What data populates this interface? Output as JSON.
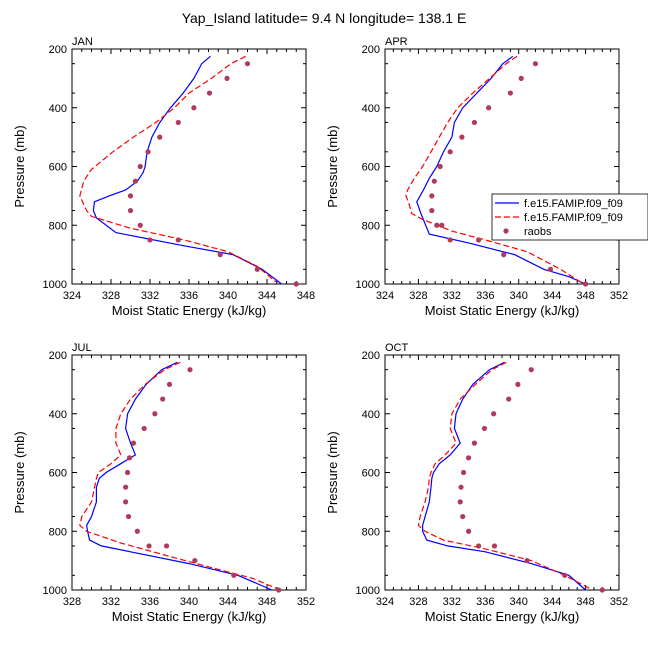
{
  "figure_title": "Yap_Island  latitude= 9.4 N longitude= 138.1 E",
  "legend": {
    "entries": [
      {
        "label": "f.e15.FAMIP.f09_f09",
        "style": "solid",
        "color": "#0000ff"
      },
      {
        "label": "f.e15.FAMIP.f09_f09",
        "style": "dashed",
        "color": "#ff0000"
      },
      {
        "label": "raobs",
        "style": "dots",
        "color": "#b03a5a"
      }
    ]
  },
  "chart_data": [
    {
      "type": "line",
      "title": "JAN",
      "xlabel": "Moist Static Energy (kJ/kg)",
      "ylabel": "Pressure (mb)",
      "xlim": [
        324,
        348
      ],
      "xticks": [
        "324",
        "328",
        "332",
        "336",
        "340",
        "344",
        "348"
      ],
      "ylim": [
        200,
        1000
      ],
      "yticks": [
        "200",
        "400",
        "600",
        "800",
        "1000"
      ],
      "y_inverted": true,
      "series": [
        {
          "name": "f.e15.FAMIP.f09_f09",
          "style": "solid",
          "color": "#0000ff",
          "x": [
            338.2,
            337.3,
            336.5,
            335.4,
            334.1,
            333.0,
            332.2,
            331.7,
            331.5,
            331.3,
            330.7,
            329.5,
            327.8,
            326.3,
            326.2,
            326.5,
            328.5,
            335.5,
            340.5,
            343.5,
            345.5
          ],
          "y": [
            225,
            250,
            300,
            350,
            400,
            450,
            500,
            550,
            600,
            620,
            650,
            680,
            700,
            720,
            750,
            775,
            825,
            870,
            900,
            950,
            1000
          ]
        },
        {
          "name": "f.e15.FAMIP.f09_f09",
          "style": "dashed",
          "color": "#ff0000",
          "x": [
            341.8,
            340.3,
            338.3,
            336.0,
            334.5,
            332.6,
            330.3,
            328.2,
            326.0,
            325.2,
            324.8,
            325.5,
            326.0,
            326.5,
            330.0,
            335.5,
            340.0,
            343.0,
            345.0
          ],
          "y": [
            225,
            250,
            300,
            350,
            400,
            450,
            500,
            550,
            610,
            650,
            700,
            750,
            770,
            775,
            810,
            850,
            890,
            940,
            995
          ]
        },
        {
          "name": "raobs",
          "style": "dots",
          "color": "#b03a5a",
          "x": [
            342.0,
            339.9,
            338.1,
            336.5,
            334.9,
            333.0,
            331.8,
            331.0,
            330.5,
            330.0,
            330.0,
            331.0,
            332.0,
            334.9,
            339.2,
            343.0,
            347.0
          ],
          "y": [
            250,
            300,
            350,
            400,
            450,
            500,
            550,
            600,
            650,
            700,
            750,
            800,
            850,
            850,
            900,
            950,
            1000
          ]
        }
      ]
    },
    {
      "type": "line",
      "title": "APR",
      "xlabel": "Moist Static Energy (kJ/kg)",
      "ylabel": "Pressure (mb)",
      "xlim": [
        324,
        352
      ],
      "xticks": [
        "324",
        "328",
        "332",
        "336",
        "340",
        "344",
        "348",
        "352"
      ],
      "ylim": [
        200,
        1000
      ],
      "yticks": [
        "200",
        "400",
        "600",
        "800",
        "1000"
      ],
      "y_inverted": true,
      "series": [
        {
          "name": "f.e15.FAMIP.f09_f09",
          "style": "solid",
          "color": "#0000ff",
          "x": [
            339.3,
            338.1,
            336.7,
            335.0,
            333.3,
            332.3,
            332.0,
            331.0,
            330.2,
            329.3,
            328.6,
            328.2,
            327.8,
            328.3,
            329.3,
            334.0,
            339.5,
            343.0,
            346.0,
            348.0
          ],
          "y": [
            225,
            250,
            300,
            350,
            400,
            450,
            500,
            550,
            600,
            640,
            680,
            700,
            720,
            760,
            830,
            860,
            900,
            950,
            975,
            1000
          ]
        },
        {
          "name": "f.e15.FAMIP.f09_f09",
          "style": "dashed",
          "color": "#ff0000",
          "x": [
            339.8,
            338.5,
            336.5,
            334.5,
            332.7,
            331.5,
            330.5,
            329.5,
            328.5,
            327.5,
            326.7,
            326.5,
            326.8,
            327.2,
            328.5,
            332.0,
            336.0,
            341.0,
            345.0,
            347.5
          ],
          "y": [
            225,
            250,
            300,
            350,
            400,
            450,
            500,
            550,
            600,
            640,
            680,
            700,
            720,
            760,
            780,
            820,
            850,
            890,
            950,
            995
          ]
        },
        {
          "name": "raobs",
          "style": "dots",
          "color": "#b03a5a",
          "x": [
            342.0,
            340.3,
            339.0,
            336.4,
            334.7,
            333.2,
            331.8,
            330.6,
            329.9,
            329.6,
            329.6,
            330.2,
            330.8,
            331.8,
            335.2,
            338.2,
            343.8,
            348.0
          ],
          "y": [
            250,
            300,
            350,
            400,
            450,
            500,
            550,
            600,
            650,
            700,
            750,
            800,
            800,
            850,
            850,
            900,
            950,
            1000
          ]
        }
      ]
    },
    {
      "type": "line",
      "title": "JUL",
      "xlabel": "Moist Static Energy (kJ/kg)",
      "ylabel": "Pressure (mb)",
      "xlim": [
        328,
        352
      ],
      "xticks": [
        "328",
        "332",
        "336",
        "340",
        "344",
        "348",
        "352"
      ],
      "ylim": [
        200,
        1000
      ],
      "yticks": [
        "200",
        "400",
        "600",
        "800",
        "1000"
      ],
      "y_inverted": true,
      "series": [
        {
          "name": "f.e15.FAMIP.f09_f09",
          "style": "solid",
          "color": "#0000ff",
          "x": [
            338.8,
            337.2,
            335.6,
            334.5,
            333.7,
            333.5,
            334.0,
            334.5,
            333.0,
            331.5,
            330.8,
            330.5,
            330.5,
            330.0,
            329.5,
            329.6,
            329.8,
            331.0,
            334.0,
            340.0,
            345.0,
            348.5
          ],
          "y": [
            225,
            250,
            300,
            350,
            400,
            450,
            500,
            540,
            570,
            600,
            620,
            650,
            700,
            750,
            780,
            800,
            830,
            850,
            870,
            910,
            950,
            1000
          ]
        },
        {
          "name": "f.e15.FAMIP.f09_f09",
          "style": "dashed",
          "color": "#ff0000",
          "x": [
            339.1,
            337.5,
            335.5,
            334.0,
            333.0,
            332.5,
            332.5,
            333.0,
            332.0,
            330.7,
            330.5,
            330.0,
            329.0,
            328.8,
            329.5,
            333.0,
            338.5,
            343.0,
            346.5,
            349.0
          ],
          "y": [
            225,
            250,
            300,
            350,
            400,
            450,
            500,
            540,
            570,
            600,
            620,
            700,
            750,
            780,
            800,
            840,
            890,
            930,
            960,
            995
          ]
        },
        {
          "name": "raobs",
          "style": "dots",
          "color": "#b03a5a",
          "x": [
            340.1,
            338.0,
            337.3,
            336.5,
            335.4,
            334.3,
            333.9,
            333.7,
            333.5,
            333.5,
            333.8,
            334.7,
            335.9,
            337.7,
            340.6,
            344.6,
            349.2
          ],
          "y": [
            250,
            300,
            350,
            400,
            450,
            500,
            550,
            600,
            650,
            700,
            750,
            800,
            850,
            850,
            900,
            950,
            1000
          ]
        }
      ]
    },
    {
      "type": "line",
      "title": "OCT",
      "xlabel": "Moist Static Energy (kJ/kg)",
      "ylabel": "Pressure (mb)",
      "xlim": [
        324,
        352
      ],
      "xticks": [
        "324",
        "328",
        "332",
        "336",
        "340",
        "344",
        "348",
        "352"
      ],
      "ylim": [
        200,
        1000
      ],
      "yticks": [
        "200",
        "400",
        "600",
        "800",
        "1000"
      ],
      "y_inverted": true,
      "series": [
        {
          "name": "f.e15.FAMIP.f09_f09",
          "style": "solid",
          "color": "#0000ff",
          "x": [
            338.3,
            336.5,
            334.5,
            333.3,
            332.5,
            332.3,
            333.0,
            331.8,
            330.5,
            329.8,
            329.6,
            329.5,
            329.3,
            328.8,
            328.5,
            328.5,
            329.0,
            331.5,
            336.0,
            341.5,
            346.0,
            348.0
          ],
          "y": [
            225,
            250,
            300,
            350,
            400,
            450,
            500,
            540,
            570,
            600,
            620,
            650,
            700,
            750,
            780,
            800,
            830,
            850,
            870,
            910,
            950,
            1000
          ]
        },
        {
          "name": "f.e15.FAMIP.f09_f09",
          "style": "dashed",
          "color": "#ff0000",
          "x": [
            338.5,
            336.8,
            334.8,
            333.0,
            332.0,
            331.8,
            332.5,
            331.2,
            330.0,
            329.5,
            329.3,
            329.2,
            328.8,
            328.2,
            328.0,
            328.8,
            331.0,
            336.0,
            341.5,
            345.5,
            348.5
          ],
          "y": [
            225,
            250,
            300,
            350,
            400,
            450,
            500,
            540,
            570,
            600,
            620,
            650,
            700,
            750,
            780,
            800,
            830,
            860,
            900,
            950,
            995
          ]
        },
        {
          "name": "raobs",
          "style": "dots",
          "color": "#b03a5a",
          "x": [
            341.5,
            339.9,
            338.8,
            337.0,
            335.9,
            334.7,
            334.0,
            333.4,
            333.1,
            333.0,
            333.3,
            334.0,
            335.2,
            337.1,
            341.0,
            345.5,
            350.0
          ],
          "y": [
            250,
            300,
            350,
            400,
            450,
            500,
            550,
            600,
            650,
            700,
            750,
            800,
            850,
            850,
            900,
            950,
            1000
          ]
        }
      ]
    }
  ]
}
